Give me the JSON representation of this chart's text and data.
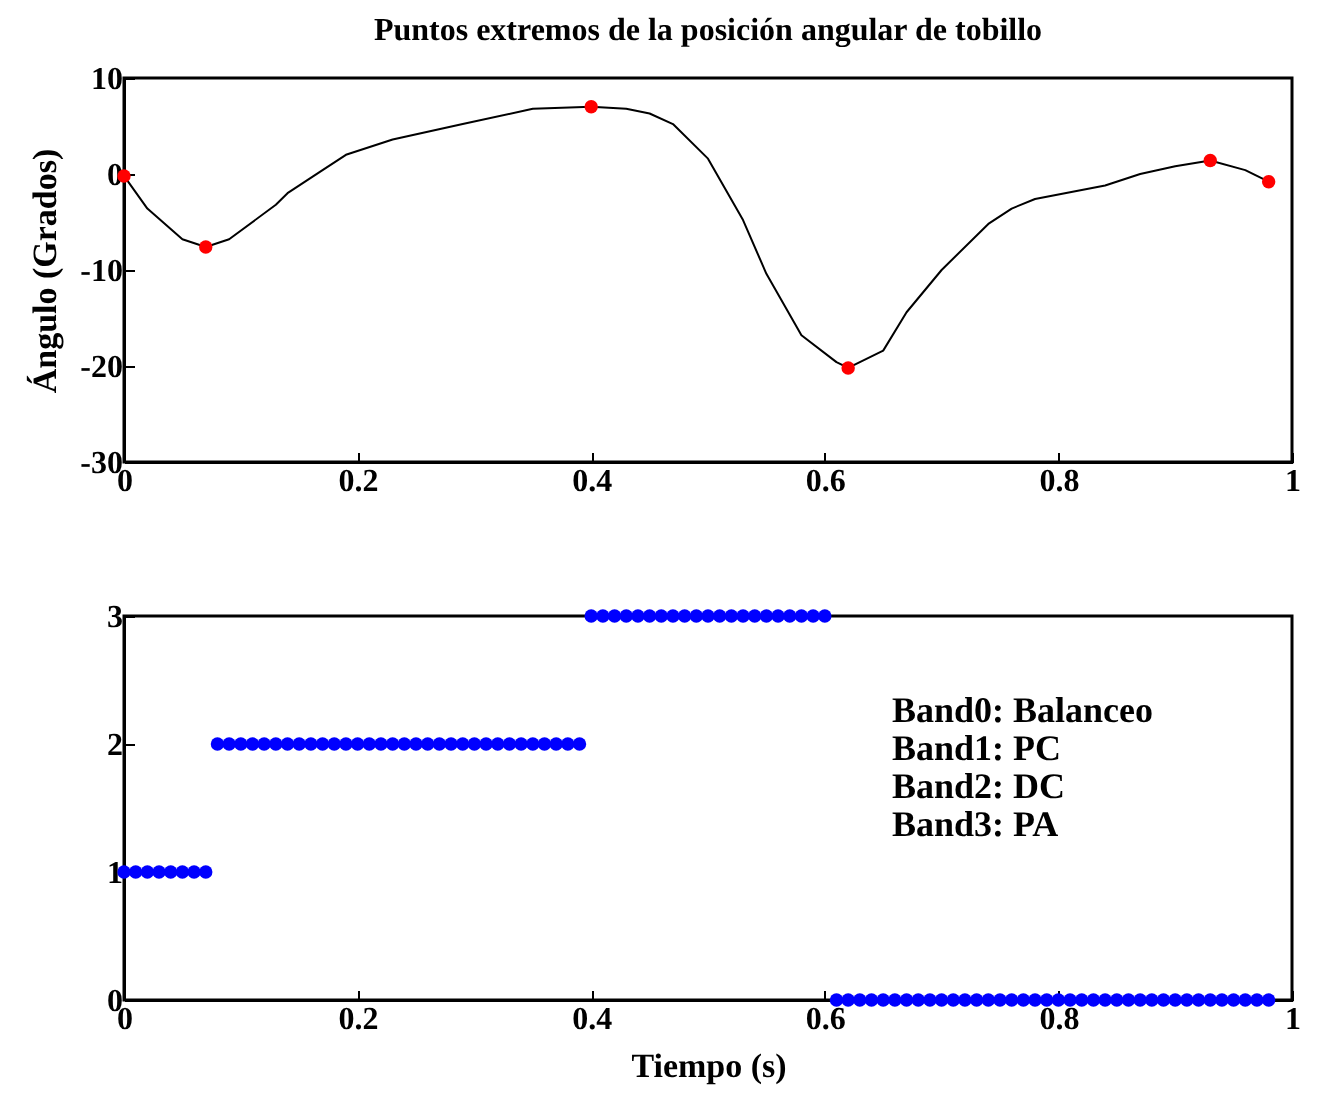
{
  "chart_data": [
    {
      "type": "line",
      "title": "Puntos extremos de la posición angular de tobillo",
      "ylabel": "Ángulo (Grados)",
      "xlim": [
        0,
        1
      ],
      "xticks": [
        0,
        0.2,
        0.4,
        0.6,
        0.8,
        1
      ],
      "ylim": [
        -30,
        10
      ],
      "yticks": [
        -30,
        -20,
        -10,
        0,
        10
      ],
      "grid": false,
      "series": [
        {
          "color": "#000000",
          "marker": "none",
          "x": [
            0,
            0.02,
            0.05,
            0.07,
            0.09,
            0.13,
            0.14,
            0.17,
            0.19,
            0.23,
            0.29,
            0.35,
            0.4,
            0.43,
            0.45,
            0.47,
            0.5,
            0.53,
            0.55,
            0.58,
            0.61,
            0.62,
            0.65,
            0.67,
            0.7,
            0.74,
            0.76,
            0.78,
            0.84,
            0.87,
            0.9,
            0.93,
            0.96,
            0.98
          ],
          "values": [
            -0.2,
            -3.6,
            -6.8,
            -7.6,
            -6.8,
            -3.2,
            -2,
            0.4,
            2,
            3.6,
            5.2,
            6.8,
            7,
            6.8,
            6.3,
            5.2,
            1.6,
            -4.8,
            -10.4,
            -16.8,
            -19.6,
            -20.2,
            -18.4,
            -14.4,
            -10,
            -5.2,
            -3.6,
            -2.6,
            -1.2,
            0,
            0.8,
            1.4,
            0.4,
            -0.8
          ]
        },
        {
          "type": "scatter",
          "color": "#ff0000",
          "marker": "circle",
          "x": [
            0,
            0.07,
            0.4,
            0.62,
            0.93,
            0.98
          ],
          "values": [
            -0.2,
            -7.6,
            7,
            -20.2,
            1.4,
            -0.8
          ]
        }
      ]
    },
    {
      "type": "scatter",
      "xlabel": "Tiempo (s)",
      "xlim": [
        0,
        1
      ],
      "xticks": [
        0,
        0.2,
        0.4,
        0.6,
        0.8,
        1
      ],
      "ylim": [
        0,
        3
      ],
      "yticks": [
        0,
        1,
        2,
        3
      ],
      "grid": false,
      "marker": "circle",
      "annotations": [
        "Band0: Balanceo",
        "Band1: PC",
        "Band2: DC",
        "Band3: PA"
      ],
      "series": [
        {
          "color": "#0000ff",
          "x": [
            0,
            0.01,
            0.02,
            0.03,
            0.04,
            0.05,
            0.06,
            0.07,
            0.08,
            0.09,
            0.1,
            0.11,
            0.12,
            0.13,
            0.14,
            0.15,
            0.16,
            0.17,
            0.18,
            0.19,
            0.2,
            0.21,
            0.22,
            0.23,
            0.24,
            0.25,
            0.26,
            0.27,
            0.28,
            0.29,
            0.3,
            0.31,
            0.32,
            0.33,
            0.34,
            0.35,
            0.36,
            0.37,
            0.38,
            0.39,
            0.4,
            0.41,
            0.42,
            0.43,
            0.44,
            0.45,
            0.46,
            0.47,
            0.48,
            0.49,
            0.5,
            0.51,
            0.52,
            0.53,
            0.54,
            0.55,
            0.56,
            0.57,
            0.58,
            0.59,
            0.6,
            0.61,
            0.62,
            0.63,
            0.64,
            0.65,
            0.66,
            0.67,
            0.68,
            0.69,
            0.7,
            0.71,
            0.72,
            0.73,
            0.74,
            0.75,
            0.76,
            0.77,
            0.78,
            0.79,
            0.8,
            0.81,
            0.82,
            0.83,
            0.84,
            0.85,
            0.86,
            0.87,
            0.88,
            0.89,
            0.9,
            0.91,
            0.92,
            0.93,
            0.94,
            0.95,
            0.96,
            0.97,
            0.98
          ],
          "values": [
            1,
            1,
            1,
            1,
            1,
            1,
            1,
            1,
            2,
            2,
            2,
            2,
            2,
            2,
            2,
            2,
            2,
            2,
            2,
            2,
            2,
            2,
            2,
            2,
            2,
            2,
            2,
            2,
            2,
            2,
            2,
            2,
            2,
            2,
            2,
            2,
            2,
            2,
            2,
            2,
            3,
            3,
            3,
            3,
            3,
            3,
            3,
            3,
            3,
            3,
            3,
            3,
            3,
            3,
            3,
            3,
            3,
            3,
            3,
            3,
            3,
            0,
            0,
            0,
            0,
            0,
            0,
            0,
            0,
            0,
            0,
            0,
            0,
            0,
            0,
            0,
            0,
            0,
            0,
            0,
            0,
            0,
            0,
            0,
            0,
            0,
            0,
            0,
            0,
            0,
            0,
            0,
            0,
            0,
            0,
            0,
            0,
            0,
            0
          ]
        }
      ]
    }
  ]
}
